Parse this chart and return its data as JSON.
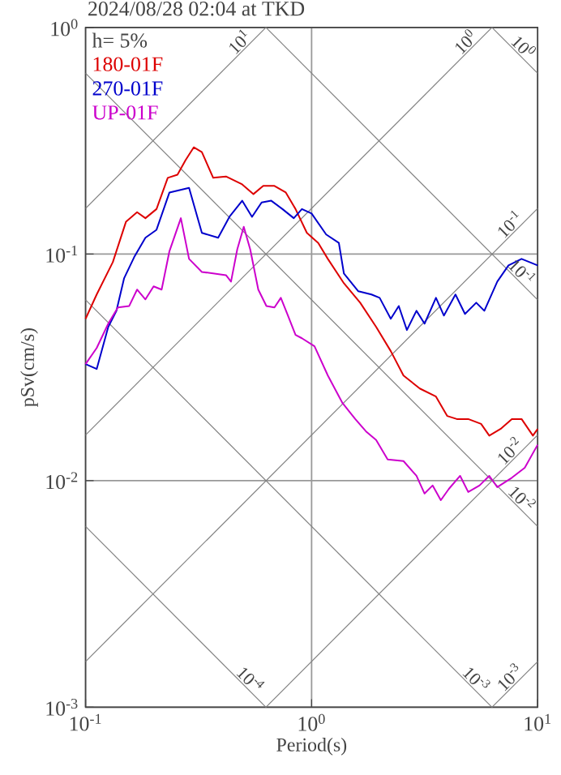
{
  "chart_data": {
    "type": "line",
    "title": "2024/08/28 02:04 at TKD",
    "xlabel": "Period(s)",
    "ylabel": "pSv(cm/s)",
    "log": "xy",
    "grid": true,
    "legend": "top left",
    "marker": "none",
    "line_style": "solid",
    "xlim": [
      0.1,
      10
    ],
    "ylim": [
      0.001,
      1
    ],
    "xticks": [
      {
        "value": 0.1,
        "label": "10$^{-1}$"
      },
      {
        "value": 1,
        "label": "10$^{0}$"
      },
      {
        "value": 10,
        "label": "10$^{1}$"
      }
    ],
    "yticks": [
      {
        "value": 0.001,
        "label": "10$^{-3}$"
      },
      {
        "value": 0.01,
        "label": "10$^{-2}$"
      },
      {
        "value": 0.1,
        "label": "10$^{-1}$"
      },
      {
        "value": 1,
        "label": "10$^{0}$"
      }
    ],
    "series": [
      {
        "type": "line",
        "color": "#808080",
        "x": [
          0.1,
          0.628
        ],
        "values": [
          0.159,
          1
        ]
      },
      {
        "type": "line",
        "color": "#808080",
        "x": [
          0.1,
          6.28
        ],
        "values": [
          0.0159,
          1
        ]
      },
      {
        "type": "line",
        "color": "#808080",
        "x": [
          0.1,
          10
        ],
        "values": [
          0.00159,
          0.159
        ]
      },
      {
        "type": "line",
        "color": "#808080",
        "x": [
          0.628,
          10
        ],
        "values": [
          0.001,
          0.0159
        ]
      },
      {
        "type": "line",
        "color": "#808080",
        "x": [
          6.28,
          10
        ],
        "values": [
          0.001,
          0.00159
        ]
      },
      {
        "type": "line",
        "color": "#808080",
        "x": [
          6.28,
          10
        ],
        "values": [
          1,
          0.628
        ]
      },
      {
        "type": "line",
        "color": "#808080",
        "x": [
          0.628,
          10
        ],
        "values": [
          1,
          0.0628
        ]
      },
      {
        "type": "line",
        "color": "#808080",
        "x": [
          0.1,
          10
        ],
        "values": [
          0.628,
          0.00628
        ]
      },
      {
        "type": "line",
        "color": "#808080",
        "x": [
          0.1,
          6.28
        ],
        "values": [
          0.0628,
          0.001
        ]
      },
      {
        "type": "line",
        "color": "#808080",
        "x": [
          0.1,
          0.628
        ],
        "values": [
          0.00628,
          0.001
        ]
      },
      {
        "name": "180-01F",
        "color": "#dd0000",
        "x": [
          0.1,
          0.112,
          0.132,
          0.151,
          0.169,
          0.184,
          0.206,
          0.231,
          0.255,
          0.277,
          0.301,
          0.327,
          0.367,
          0.418,
          0.493,
          0.553,
          0.611,
          0.685,
          0.769,
          0.849,
          0.953,
          1.07,
          1.18,
          1.39,
          1.64,
          1.93,
          2.24,
          2.55,
          3.01,
          3.55,
          3.98,
          4.39,
          4.93,
          5.62,
          6.11,
          6.85,
          7.69,
          8.49,
          9.53,
          10
        ],
        "values": [
          0.0518,
          0.0663,
          0.0921,
          0.139,
          0.153,
          0.144,
          0.158,
          0.217,
          0.224,
          0.26,
          0.296,
          0.282,
          0.217,
          0.22,
          0.203,
          0.184,
          0.2,
          0.2,
          0.187,
          0.158,
          0.124,
          0.112,
          0.0952,
          0.0743,
          0.061,
          0.0477,
          0.0373,
          0.0291,
          0.0255,
          0.0235,
          0.0193,
          0.0187,
          0.0187,
          0.0178,
          0.0158,
          0.0169,
          0.0187,
          0.0187,
          0.0158,
          0.0169
        ]
      },
      {
        "name": "270-01F",
        "color": "#0000cc",
        "x": [
          0.1,
          0.112,
          0.126,
          0.137,
          0.148,
          0.164,
          0.184,
          0.206,
          0.235,
          0.287,
          0.327,
          0.386,
          0.433,
          0.493,
          0.545,
          0.601,
          0.663,
          0.743,
          0.834,
          0.906,
          1,
          1.16,
          1.32,
          1.39,
          1.61,
          1.84,
          2,
          2.24,
          2.43,
          2.64,
          2.91,
          3.16,
          3.55,
          3.85,
          4.33,
          4.77,
          5.35,
          5.81,
          6.63,
          7.43,
          8.49,
          10
        ],
        "values": [
          0.0327,
          0.0311,
          0.0477,
          0.0562,
          0.0781,
          0.0968,
          0.118,
          0.128,
          0.187,
          0.196,
          0.124,
          0.118,
          0.146,
          0.172,
          0.146,
          0.169,
          0.172,
          0.158,
          0.144,
          0.158,
          0.151,
          0.122,
          0.112,
          0.082,
          0.0685,
          0.0663,
          0.0641,
          0.0518,
          0.059,
          0.0462,
          0.0562,
          0.0493,
          0.0641,
          0.0535,
          0.0663,
          0.0544,
          0.061,
          0.0562,
          0.0756,
          0.0891,
          0.0952,
          0.0891
        ]
      },
      {
        "name": "UP-01F",
        "color": "#cc00cc",
        "x": [
          0.1,
          0.112,
          0.126,
          0.139,
          0.156,
          0.169,
          0.184,
          0.2,
          0.217,
          0.235,
          0.264,
          0.287,
          0.327,
          0.418,
          0.44,
          0.469,
          0.501,
          0.535,
          0.581,
          0.631,
          0.685,
          0.731,
          0.781,
          0.849,
          0.906,
          1.03,
          1.18,
          1.37,
          1.56,
          1.75,
          1.93,
          2.17,
          2.55,
          2.91,
          3.16,
          3.43,
          3.73,
          4.05,
          4.54,
          4.93,
          5.53,
          6.11,
          6.63,
          7.69,
          8.77,
          10
        ],
        "values": [
          0.0327,
          0.0385,
          0.0493,
          0.0581,
          0.059,
          0.0697,
          0.0631,
          0.072,
          0.0697,
          0.103,
          0.144,
          0.0952,
          0.0834,
          0.0807,
          0.0756,
          0.105,
          0.132,
          0.105,
          0.0697,
          0.059,
          0.0581,
          0.0641,
          0.0544,
          0.044,
          0.0425,
          0.0392,
          0.0291,
          0.022,
          0.0187,
          0.0164,
          0.0151,
          0.0124,
          0.0122,
          0.0105,
          0.00877,
          0.00952,
          0.0082,
          0.0092,
          0.0105,
          0.00891,
          0.00952,
          0.0105,
          0.00936,
          0.0103,
          0.0114,
          0.0144
        ]
      }
    ],
    "annotations": [
      "h= 5%",
      {
        "text": "10$^{1}$",
        "x": 0.628,
        "y": 1
      },
      {
        "text": "10$^{0}$",
        "x": 6.28,
        "y": 1
      },
      {
        "text": "10$^{-1}$",
        "x": 10,
        "y": 0.159
      },
      {
        "text": "10$^{-2}$",
        "x": 10,
        "y": 0.0159
      },
      {
        "text": "10$^{-3}$",
        "x": 10,
        "y": 0.00159
      },
      {
        "text": "10$^{0}$",
        "x": 10,
        "y": 0.628
      },
      {
        "text": "10$^{-1}$",
        "x": 10,
        "y": 0.0628
      },
      {
        "text": "10$^{-2}$",
        "x": 10,
        "y": 0.00628
      },
      {
        "text": "10$^{-3}$",
        "x": 6.28,
        "y": 0.001
      },
      {
        "text": "10$^{-4}$",
        "x": 0.628,
        "y": 0.001
      }
    ]
  }
}
